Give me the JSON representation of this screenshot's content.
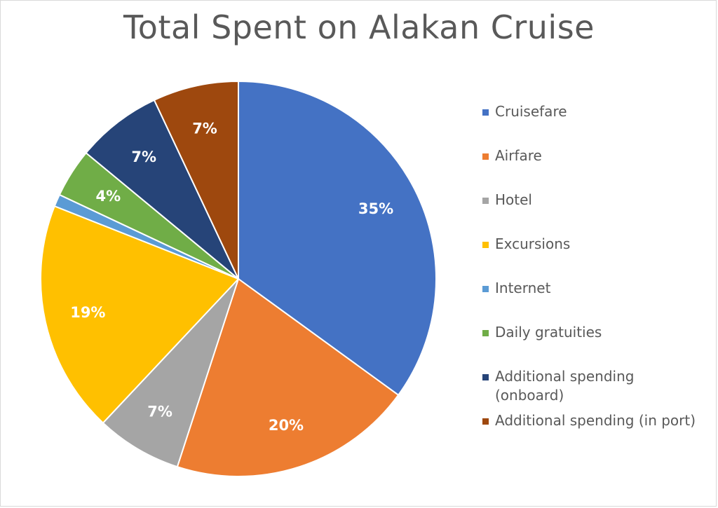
{
  "chart_data": {
    "type": "pie",
    "title": "Total Spent on Alakan Cruise",
    "legend_position": "right",
    "slices": [
      {
        "name": "Cruisefare",
        "value": 35,
        "label": "35%",
        "color": "#4472c4"
      },
      {
        "name": "Airfare",
        "value": 20,
        "label": "20%",
        "color": "#ed7d31"
      },
      {
        "name": "Hotel",
        "value": 7,
        "label": "7%",
        "color": "#a5a5a5"
      },
      {
        "name": "Excursions",
        "value": 19,
        "label": "19%",
        "color": "#ffc000"
      },
      {
        "name": "Internet",
        "value": 1,
        "label": "",
        "color": "#5b9bd5"
      },
      {
        "name": "Daily gratuities",
        "value": 4,
        "label": "4%",
        "color": "#70ad47"
      },
      {
        "name": "Additional spending\n(onboard)",
        "value": 7,
        "label": "7%",
        "color": "#264478"
      },
      {
        "name": "Additional spending (in port)",
        "value": 7,
        "label": "7%",
        "color": "#9e480e"
      }
    ]
  }
}
